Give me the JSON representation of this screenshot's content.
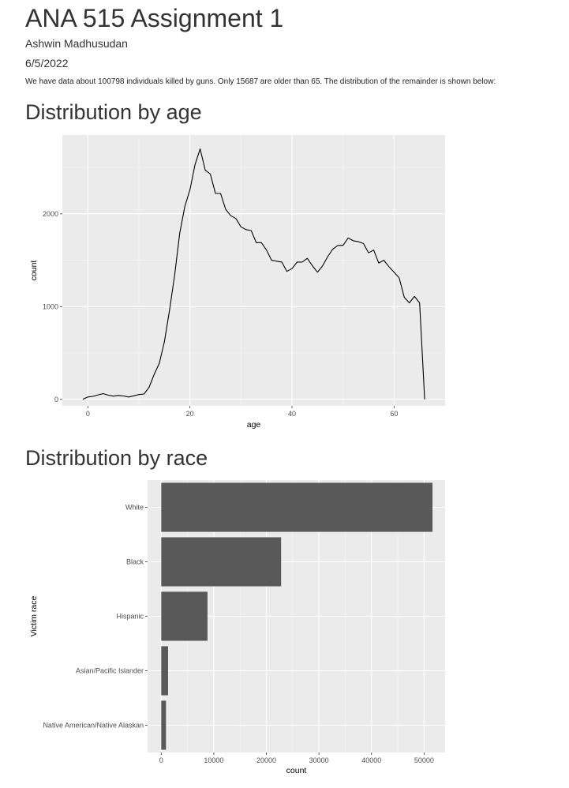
{
  "document": {
    "title": "ANA 515 Assignment 1",
    "author": "Ashwin Madhusudan",
    "date": "6/5/2022",
    "intro": "We have data about 100798 individuals killed by guns. Only 15687 are older than 65. The distribution of the remainder is shown below:",
    "section_age": "Distribution by age",
    "section_race": "Distribution by race"
  },
  "chart_data": [
    {
      "type": "line",
      "title": "",
      "xlabel": "age",
      "ylabel": "count",
      "xlim": [
        -5,
        70
      ],
      "ylim": [
        -70,
        2850
      ],
      "x_ticks": [
        0,
        20,
        40,
        60
      ],
      "y_ticks": [
        0,
        1000,
        2000
      ],
      "x_tick_labels": [
        "0",
        "20",
        "40",
        "60"
      ],
      "y_tick_labels": [
        "0",
        "1000",
        "2000"
      ],
      "grid": true,
      "background": "#ebebeb",
      "line_color": "#000000",
      "x": [
        -1,
        0,
        1,
        2,
        3,
        4,
        5,
        6,
        7,
        8,
        9,
        10,
        11,
        12,
        13,
        14,
        15,
        16,
        17,
        18,
        19,
        20,
        21,
        22,
        23,
        24,
        25,
        26,
        27,
        28,
        29,
        30,
        31,
        32,
        33,
        34,
        35,
        36,
        37,
        38,
        39,
        40,
        41,
        42,
        43,
        44,
        45,
        46,
        47,
        48,
        49,
        50,
        51,
        52,
        53,
        54,
        55,
        56,
        57,
        58,
        59,
        60,
        61,
        62,
        63,
        64,
        65,
        66
      ],
      "y": [
        0,
        25,
        32,
        48,
        62,
        45,
        35,
        42,
        36,
        25,
        38,
        52,
        58,
        130,
        270,
        390,
        620,
        960,
        1340,
        1790,
        2080,
        2260,
        2530,
        2700,
        2470,
        2430,
        2220,
        2220,
        2050,
        1980,
        1950,
        1860,
        1830,
        1820,
        1690,
        1690,
        1610,
        1500,
        1490,
        1480,
        1380,
        1410,
        1480,
        1480,
        1520,
        1440,
        1370,
        1440,
        1540,
        1620,
        1660,
        1660,
        1740,
        1710,
        1700,
        1680,
        1580,
        1610,
        1470,
        1500,
        1430,
        1370,
        1310,
        1100,
        1040,
        1110,
        1040,
        0
      ]
    },
    {
      "type": "bar",
      "orientation": "horizontal",
      "title": "",
      "xlabel": "count",
      "ylabel": "Victim race",
      "xlim": [
        -2600,
        54000
      ],
      "x_ticks": [
        0,
        10000,
        20000,
        30000,
        40000,
        50000
      ],
      "x_tick_labels": [
        "0",
        "10000",
        "20000",
        "30000",
        "40000",
        "50000"
      ],
      "grid": true,
      "background": "#ebebeb",
      "bar_color": "#595959",
      "categories": [
        "White",
        "Black",
        "Hispanic",
        "Asian/Pacific Islander",
        "Native American/Native Alaskan"
      ],
      "values": [
        51600,
        22800,
        8800,
        1300,
        900
      ]
    }
  ]
}
